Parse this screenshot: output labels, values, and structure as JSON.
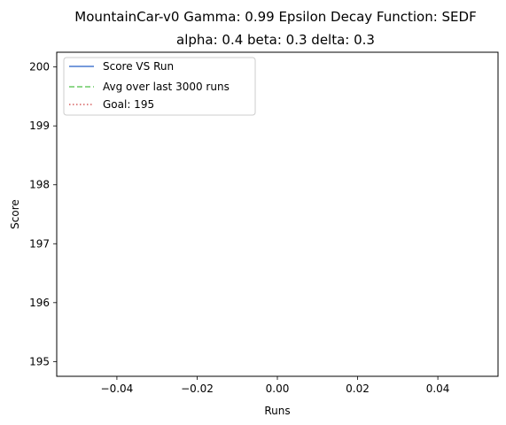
{
  "chart_data": {
    "type": "line",
    "title_line1": "MountainCar-v0 Gamma: 0.99 Epsilon Decay Function: SEDF",
    "title_line2": "alpha: 0.4  beta: 0.3  delta: 0.3",
    "xlabel": "Runs",
    "ylabel": "Score",
    "xlim": [
      -0.055,
      0.055
    ],
    "ylim": [
      194.75,
      200.25
    ],
    "xticks": [
      -0.04,
      -0.02,
      0.0,
      0.02,
      0.04
    ],
    "xtick_labels": [
      "−0.04",
      "−0.02",
      "0.00",
      "0.02",
      "0.04"
    ],
    "yticks": [
      195,
      196,
      197,
      198,
      199,
      200
    ],
    "ytick_labels": [
      "195",
      "196",
      "197",
      "198",
      "199",
      "200"
    ],
    "grid": false,
    "legend_position": "top-left",
    "series": [
      {
        "name": "Score VS Run",
        "color": "#4878cf",
        "linestyle": "solid",
        "x": [],
        "y": []
      },
      {
        "name": "Avg over last 3000 runs",
        "color": "#6acc65",
        "linestyle": "dashed",
        "x": [],
        "y": []
      },
      {
        "name": "Goal: 195",
        "color": "#d65f5f",
        "linestyle": "dotted",
        "x": [],
        "y": []
      }
    ]
  }
}
